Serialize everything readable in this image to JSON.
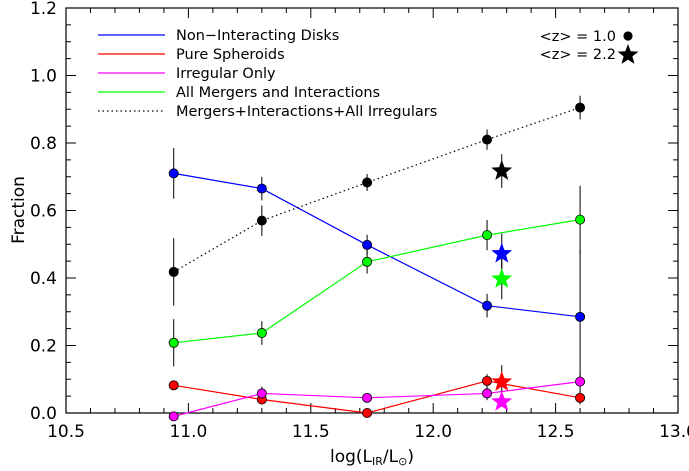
{
  "chart_data": {
    "type": "line",
    "xlabel": "log(L",
    "xlabel_sub": "IR",
    "xlabel_mid": "/L",
    "xlabel_sun": "⊙",
    "xlabel_end": ")",
    "ylabel": "Fraction",
    "xlim": [
      10.5,
      13.0
    ],
    "ylim": [
      0.0,
      1.2
    ],
    "xticks": [
      "10.5",
      "11.0",
      "11.5",
      "12.0",
      "12.5",
      "13.0"
    ],
    "yticks": [
      "0.0",
      "0.2",
      "0.4",
      "0.6",
      "0.8",
      "1.0",
      "1.2"
    ],
    "x": [
      10.94,
      11.3,
      11.73,
      12.22,
      12.6
    ],
    "series": [
      {
        "name": "Non−Interacting Disks",
        "color": "#0000ff",
        "line": "solid",
        "values": [
          0.71,
          0.665,
          0.498,
          0.318,
          0.285
        ],
        "err": [
          0.075,
          0.035,
          0.03,
          0.035,
          0.2
        ]
      },
      {
        "name": "Pure Spheroids",
        "color": "#ff0000",
        "line": "solid",
        "values": [
          0.082,
          0.04,
          0.0,
          0.095,
          0.045
        ],
        "err": [
          0.01,
          0.01,
          0.01,
          0.02,
          0.02
        ]
      },
      {
        "name": "Irregular Only",
        "color": "#ff00ff",
        "line": "solid",
        "values": [
          -0.01,
          0.058,
          0.045,
          0.058,
          0.093
        ],
        "err": [
          0.0,
          0.02,
          0.01,
          0.02,
          0.03
        ]
      },
      {
        "name": "All Mergers and Interactions",
        "color": "#00ff00",
        "line": "solid",
        "values": [
          0.208,
          0.237,
          0.448,
          0.527,
          0.573
        ],
        "err": [
          0.07,
          0.035,
          0.035,
          0.045,
          0.1
        ]
      },
      {
        "name": "Mergers+Interactions+All Irregulars",
        "color": "#000000",
        "line": "dotted",
        "values": [
          0.418,
          0.57,
          0.683,
          0.81,
          0.905
        ],
        "err": [
          0.1,
          0.045,
          0.025,
          0.03,
          0.035
        ]
      }
    ],
    "stars_z22": {
      "x": 12.28,
      "points": [
        {
          "color": "#000000",
          "value": 0.717,
          "err": 0.05
        },
        {
          "color": "#0000ff",
          "value": 0.472,
          "err": 0.06
        },
        {
          "color": "#00ff00",
          "value": 0.397,
          "err": 0.06
        },
        {
          "color": "#ff0000",
          "value": 0.092,
          "err": 0.05
        },
        {
          "color": "#ff00ff",
          "value": 0.033,
          "err": 0.01
        }
      ]
    },
    "redshift_legend": [
      {
        "label": "<z> = 1.0",
        "marker": "circle"
      },
      {
        "label": "<z> = 2.2",
        "marker": "star"
      }
    ],
    "legend_position": "top-left",
    "grid": false
  }
}
